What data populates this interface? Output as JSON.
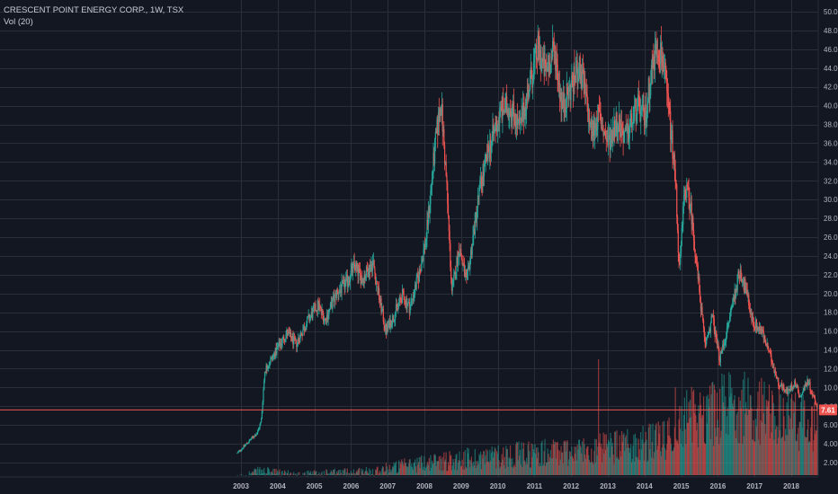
{
  "header": {
    "symbol_title": "CRESCENT POINT ENERGY CORP., 1W, TSX",
    "volume_label": "Vol (20)"
  },
  "colors": {
    "background": "#131722",
    "grid": "#2a2e39",
    "up": "#26a69a",
    "down": "#ef5350",
    "last_price_line": "#ef5350",
    "axis_text": "#b2b5be"
  },
  "chart_data": {
    "type": "candlestick",
    "interval": "1W",
    "exchange": "TSX",
    "title": "CRESCENT POINT ENERGY CORP., 1W, TSX",
    "x_ticks": [
      "2003",
      "2004",
      "2005",
      "2006",
      "2007",
      "2008",
      "2009",
      "2010",
      "2011",
      "2012",
      "2013",
      "2014",
      "2015",
      "2016",
      "2017",
      "2018"
    ],
    "y_ticks": [
      "50.00",
      "48.00",
      "46.00",
      "44.00",
      "42.00",
      "40.00",
      "38.00",
      "36.00",
      "34.00",
      "32.00",
      "30.00",
      "28.00",
      "26.00",
      "24.00",
      "22.00",
      "20.00",
      "18.00",
      "16.00",
      "14.00",
      "12.00",
      "10.00",
      "8.00",
      "6.00",
      "4.00",
      "2.00"
    ],
    "ylim": [
      0,
      51
    ],
    "last_price": "7.61",
    "last_price_value": 7.61,
    "grid": true,
    "price_path": [
      [
        2002.9,
        3.0
      ],
      [
        2003.2,
        4.2
      ],
      [
        2003.45,
        5.2
      ],
      [
        2003.55,
        6.4
      ],
      [
        2003.65,
        11.8
      ],
      [
        2003.9,
        13.5
      ],
      [
        2004.25,
        15.8
      ],
      [
        2004.5,
        14.6
      ],
      [
        2004.8,
        17.0
      ],
      [
        2005.1,
        18.8
      ],
      [
        2005.3,
        17.2
      ],
      [
        2005.6,
        20.0
      ],
      [
        2005.85,
        21.0
      ],
      [
        2006.1,
        23.0
      ],
      [
        2006.3,
        21.5
      ],
      [
        2006.6,
        23.4
      ],
      [
        2006.72,
        20.5
      ],
      [
        2006.95,
        16.0
      ],
      [
        2007.15,
        17.5
      ],
      [
        2007.4,
        19.8
      ],
      [
        2007.6,
        18.5
      ],
      [
        2007.85,
        22.0
      ],
      [
        2008.05,
        26.0
      ],
      [
        2008.3,
        36.0
      ],
      [
        2008.45,
        40.5
      ],
      [
        2008.6,
        32.0
      ],
      [
        2008.75,
        20.0
      ],
      [
        2008.95,
        25.0
      ],
      [
        2009.15,
        21.0
      ],
      [
        2009.5,
        31.0
      ],
      [
        2009.8,
        36.0
      ],
      [
        2010.1,
        39.5
      ],
      [
        2010.35,
        40.0
      ],
      [
        2010.6,
        37.5
      ],
      [
        2010.85,
        42.0
      ],
      [
        2011.1,
        46.0
      ],
      [
        2011.3,
        43.5
      ],
      [
        2011.55,
        46.0
      ],
      [
        2011.75,
        40.0
      ],
      [
        2011.95,
        41.5
      ],
      [
        2012.2,
        44.0
      ],
      [
        2012.35,
        42.0
      ],
      [
        2012.55,
        37.0
      ],
      [
        2012.75,
        39.0
      ],
      [
        2013.0,
        36.0
      ],
      [
        2013.25,
        38.5
      ],
      [
        2013.5,
        36.5
      ],
      [
        2013.8,
        40.0
      ],
      [
        2014.0,
        38.5
      ],
      [
        2014.2,
        44.0
      ],
      [
        2014.35,
        46.5
      ],
      [
        2014.5,
        45.0
      ],
      [
        2014.7,
        38.0
      ],
      [
        2014.85,
        32.0
      ],
      [
        2014.95,
        22.0
      ],
      [
        2015.1,
        31.5
      ],
      [
        2015.25,
        29.5
      ],
      [
        2015.45,
        22.0
      ],
      [
        2015.65,
        14.5
      ],
      [
        2015.85,
        17.5
      ],
      [
        2016.05,
        13.0
      ],
      [
        2016.25,
        16.0
      ],
      [
        2016.4,
        19.0
      ],
      [
        2016.6,
        22.5
      ],
      [
        2016.75,
        20.5
      ],
      [
        2016.95,
        17.0
      ],
      [
        2017.2,
        16.0
      ],
      [
        2017.45,
        13.0
      ],
      [
        2017.65,
        10.5
      ],
      [
        2017.9,
        9.5
      ],
      [
        2018.1,
        10.5
      ],
      [
        2018.25,
        9.0
      ],
      [
        2018.45,
        10.8
      ],
      [
        2018.6,
        9.0
      ],
      [
        2018.75,
        7.61
      ]
    ],
    "volume_profile": [
      [
        2002.9,
        0.5
      ],
      [
        2003.5,
        1.2
      ],
      [
        2004.5,
        0.8
      ],
      [
        2006.5,
        1.2
      ],
      [
        2008.0,
        2.2
      ],
      [
        2010.0,
        3.0
      ],
      [
        2012.8,
        3.8
      ],
      [
        2014.5,
        4.8
      ],
      [
        2015.2,
        7.5
      ],
      [
        2016.5,
        9.0
      ],
      [
        2017.5,
        8.0
      ],
      [
        2018.75,
        6.5
      ]
    ]
  }
}
